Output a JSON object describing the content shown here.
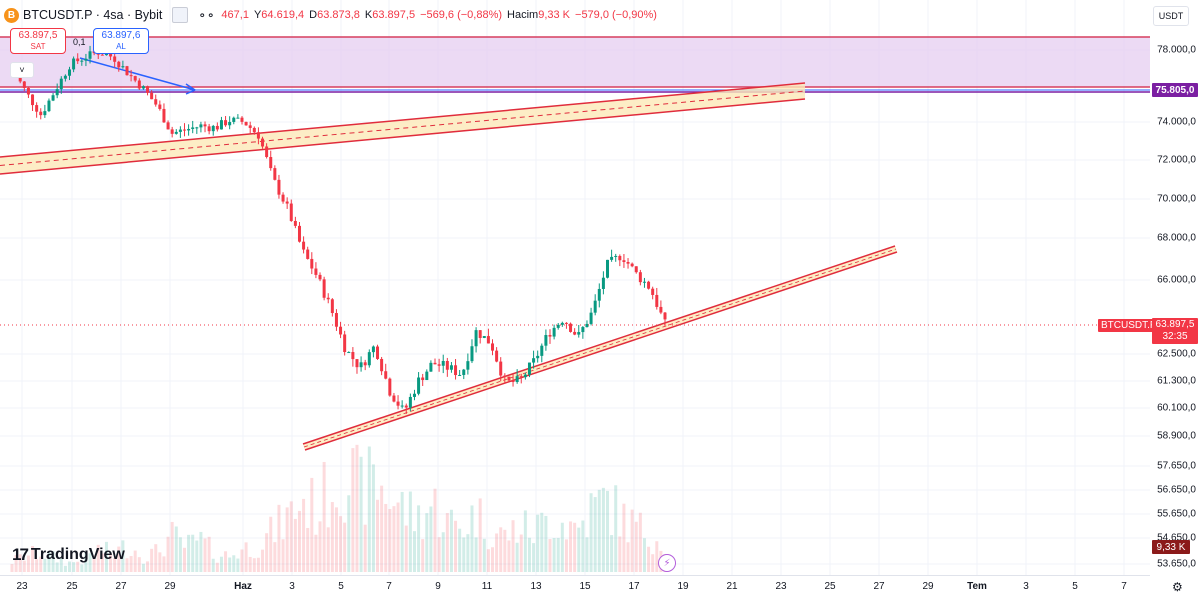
{
  "header": {
    "coin_icon": "B",
    "symbol_title": "BTCUSDT.P · 4sa · Bybit",
    "ohlc_prefix": "467,1",
    "high_label": "Y",
    "high_value": "64.619,4",
    "low_label": "D",
    "low_value": "63.873,8",
    "close_label": "K",
    "close_value": "63.897,5",
    "change_value": "−569,6 (−0,88%)",
    "volume_label": "Hacim",
    "volume_value": "9,33 K",
    "volume_change": "−579,0 (−0,90%)",
    "menu_icon": "more-dots-icon"
  },
  "trade": {
    "sell_price": "63.897,5",
    "sell_label": "SAT",
    "spread": "0,1",
    "buy_price": "63.897,6",
    "buy_label": "AL",
    "collapse_glyph": "˅"
  },
  "currency": "USDT",
  "price_axis": {
    "ticks": [
      {
        "price": 78000,
        "label": "78.000,0"
      },
      {
        "price": 74000,
        "label": "74.000,0"
      },
      {
        "price": 72000,
        "label": "72.000,0"
      },
      {
        "price": 70000,
        "label": "70.000,0"
      },
      {
        "price": 68000,
        "label": "68.000,0"
      },
      {
        "price": 66000,
        "label": "66.000,0"
      },
      {
        "price": 62500,
        "label": "62.500,0"
      },
      {
        "price": 61300,
        "label": "61.300,0"
      },
      {
        "price": 60100,
        "label": "60.100,0"
      },
      {
        "price": 58900,
        "label": "58.900,0"
      },
      {
        "price": 57650,
        "label": "57.650,0"
      },
      {
        "price": 56650,
        "label": "56.650,0"
      },
      {
        "price": 55650,
        "label": "55.650,0"
      },
      {
        "price": 54650,
        "label": "54.650,0"
      },
      {
        "price": 53650,
        "label": "53.650,0"
      }
    ],
    "level_badge": "75.805,0",
    "symbol_badge": "BTCUSDT.P",
    "price_badge": "63.897,5",
    "countdown": "32:35",
    "volume_badge": "9,33 K"
  },
  "time_axis": {
    "labels": [
      {
        "text": "23",
        "bold": false
      },
      {
        "text": "25",
        "bold": false
      },
      {
        "text": "27",
        "bold": false
      },
      {
        "text": "29",
        "bold": false
      },
      {
        "text": "Haz",
        "bold": true
      },
      {
        "text": "3",
        "bold": false
      },
      {
        "text": "5",
        "bold": false
      },
      {
        "text": "7",
        "bold": false
      },
      {
        "text": "9",
        "bold": false
      },
      {
        "text": "11",
        "bold": false
      },
      {
        "text": "13",
        "bold": false
      },
      {
        "text": "15",
        "bold": false
      },
      {
        "text": "17",
        "bold": false
      },
      {
        "text": "19",
        "bold": false
      },
      {
        "text": "21",
        "bold": false
      },
      {
        "text": "23",
        "bold": false
      },
      {
        "text": "25",
        "bold": false
      },
      {
        "text": "27",
        "bold": false
      },
      {
        "text": "29",
        "bold": false
      },
      {
        "text": "Tem",
        "bold": true
      },
      {
        "text": "3",
        "bold": false
      },
      {
        "text": "5",
        "bold": false
      },
      {
        "text": "7",
        "bold": false
      }
    ]
  },
  "price_path": [
    77000,
    75600,
    74400,
    75800,
    77200,
    77600,
    77900,
    77600,
    76700,
    75900,
    74900,
    73400,
    73600,
    73800,
    73700,
    74100,
    74000,
    73300,
    71000,
    69500,
    67400,
    66200,
    64600,
    62700,
    61900,
    62900,
    60900,
    59900,
    61300,
    62100,
    61900,
    61600,
    63600,
    63000,
    61200,
    61300,
    62200,
    63500,
    64200,
    63300,
    64500,
    66700,
    67200,
    66300,
    65600,
    63900
  ],
  "volume_path": [
    12,
    18,
    22,
    15,
    10,
    14,
    25,
    20,
    30,
    18,
    22,
    40,
    28,
    35,
    20,
    18,
    26,
    30,
    45,
    60,
    80,
    70,
    95,
    110,
    90,
    100,
    85,
    70,
    60,
    75,
    55,
    50,
    65,
    45,
    40,
    50,
    45,
    60,
    55,
    48,
    70,
    80,
    60,
    50,
    40,
    35
  ],
  "colors": {
    "up": "#089981",
    "down": "#f23645",
    "zone_fill": "#e6cdf0",
    "zone_border": "#d63e5f",
    "level_line": "#2962ff",
    "level_badge": "#7b1fa2",
    "channel_fill": "#fce8b8",
    "channel_border": "#e02c3c",
    "arrow": "#2962ff"
  },
  "branding": {
    "logo_mark": "17",
    "logo_text": "TradingView"
  },
  "icons": {
    "bolt": "⚡",
    "settings": "⚙"
  }
}
